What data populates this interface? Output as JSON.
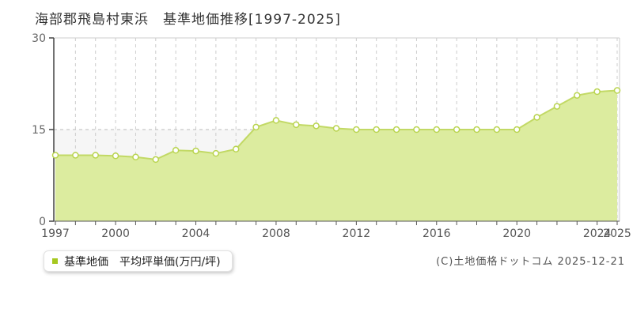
{
  "title": "海部郡飛島村東浜　基準地価推移[1997-2025]",
  "legend": {
    "label": "基準地価　平均坪単価(万円/坪)",
    "marker_color": "#a6c820"
  },
  "footer": {
    "copyright": "(C)土地価格ドットコム 2025-12-21"
  },
  "chart_data": {
    "type": "area",
    "title": "海部郡飛島村東浜 基準地価推移[1997-2025]",
    "series_name": "基準地価 平均坪単価(万円/坪)",
    "x": [
      1997,
      1998,
      1999,
      2000,
      2001,
      2002,
      2003,
      2004,
      2005,
      2006,
      2007,
      2008,
      2009,
      2010,
      2011,
      2012,
      2013,
      2014,
      2015,
      2016,
      2017,
      2018,
      2019,
      2020,
      2021,
      2022,
      2023,
      2024,
      2025
    ],
    "values": [
      10.8,
      10.8,
      10.8,
      10.7,
      10.5,
      10.1,
      11.6,
      11.5,
      11.1,
      11.8,
      15.4,
      16.5,
      15.8,
      15.6,
      15.2,
      15.0,
      15.0,
      15.0,
      15.0,
      15.0,
      15.0,
      15.0,
      15.0,
      15.0,
      17.0,
      18.8,
      20.6,
      21.2,
      21.4
    ],
    "xlabel": "",
    "ylabel": "",
    "ylim": [
      0,
      30
    ],
    "yticks": [
      0,
      15,
      30
    ],
    "xtick_labels": [
      1997,
      2000,
      2004,
      2008,
      2012,
      2016,
      2020,
      2024,
      2025
    ],
    "grid": "dashed",
    "legend_position": "bottom-left",
    "colors": {
      "line": "#c2d965",
      "fill": "#dcec9f",
      "marker_fill": "#ffffff",
      "marker_stroke": "#b9d44f",
      "band_low": "#f6f6f6",
      "band_high": "#ffffff",
      "gridline": "#cccccc",
      "axis": "#555555",
      "tick_label": "#666666",
      "border": "#cccccc"
    }
  }
}
